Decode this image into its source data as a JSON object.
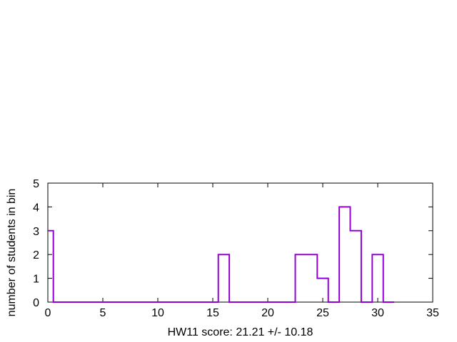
{
  "chart_data": {
    "type": "histogram-step",
    "xlabel": "HW11 score: 21.21 +/- 10.18",
    "ylabel": "number of students in bin",
    "xlim": [
      0,
      35
    ],
    "ylim": [
      0,
      5
    ],
    "xticks": [
      0,
      5,
      10,
      15,
      20,
      25,
      30,
      35
    ],
    "yticks": [
      0,
      1,
      2,
      3,
      4,
      5
    ],
    "grid": false,
    "line_color": "#9400d3",
    "bins": [
      {
        "x0": 0,
        "x1": 0.5,
        "count": 3
      },
      {
        "x0": 0.5,
        "x1": 15.5,
        "count": 0
      },
      {
        "x0": 15.5,
        "x1": 16.5,
        "count": 2
      },
      {
        "x0": 16.5,
        "x1": 22.5,
        "count": 0
      },
      {
        "x0": 22.5,
        "x1": 24.5,
        "count": 2
      },
      {
        "x0": 24.5,
        "x1": 25.5,
        "count": 1
      },
      {
        "x0": 25.5,
        "x1": 26.5,
        "count": 0
      },
      {
        "x0": 26.5,
        "x1": 27.5,
        "count": 4
      },
      {
        "x0": 27.5,
        "x1": 28.5,
        "count": 3
      },
      {
        "x0": 28.5,
        "x1": 29.5,
        "count": 0
      },
      {
        "x0": 29.5,
        "x1": 30.5,
        "count": 2
      },
      {
        "x0": 30.5,
        "x1": 31.5,
        "count": 0
      }
    ]
  }
}
